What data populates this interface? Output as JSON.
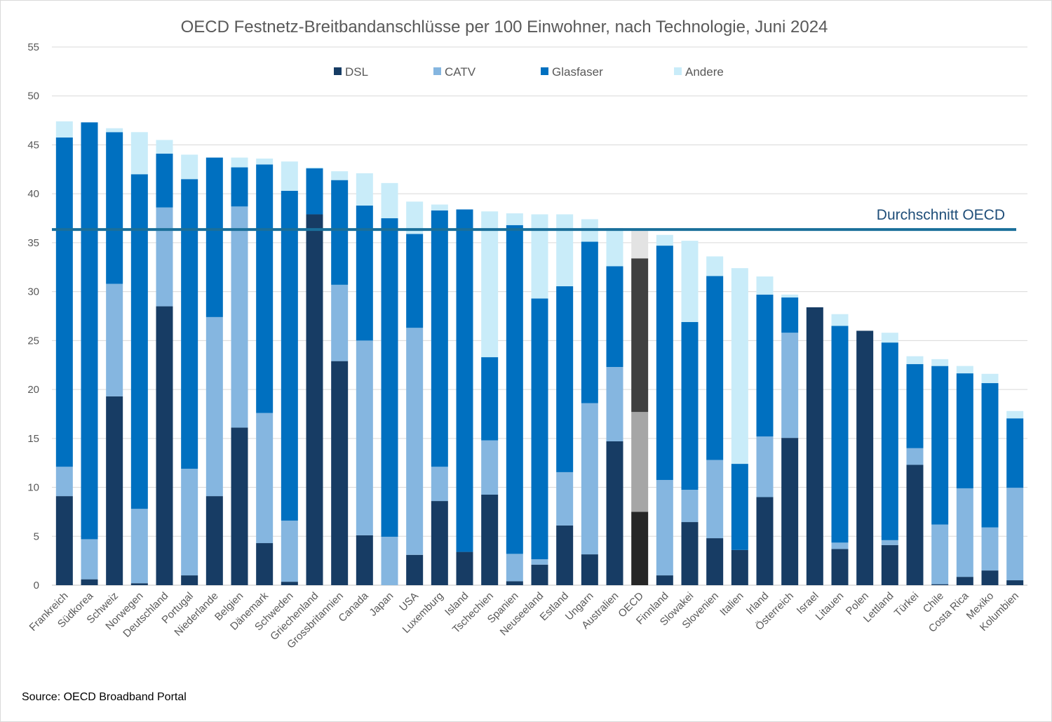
{
  "chart_data": {
    "type": "bar",
    "stacked": true,
    "title": "OECD Festnetz-Breitbandanschlüsse per 100 Einwohner, nach Technologie, Juni 2024",
    "xlabel": "",
    "ylabel": "",
    "ylim": [
      0,
      55
    ],
    "yticks": [
      0,
      5,
      10,
      15,
      20,
      25,
      30,
      35,
      40,
      45,
      50,
      55
    ],
    "grid": true,
    "legend_position": "top",
    "categories": [
      "Frankreich",
      "Südkorea",
      "Schweiz",
      "Norwegen",
      "Deutschland",
      "Portugal",
      "Niederlande",
      "Belgien",
      "Dänemark",
      "Schweden",
      "Griechenland",
      "Grossbritannien",
      "Canada",
      "Japan",
      "USA",
      "Luxemburg",
      "Island",
      "Tschechien",
      "Spanien",
      "Neuseeland",
      "Estland",
      "Ungarn",
      "Australien",
      "OECD",
      "Finnland",
      "Slowakei",
      "Slovenien",
      "Italien",
      "Irland",
      "Österreich",
      "Israel",
      "Litauen",
      "Polen",
      "Lettland",
      "Türkei",
      "Chile",
      "Costa Rica",
      "Mexiko",
      "Kolumbien"
    ],
    "series": [
      {
        "name": "DSL",
        "color": "#173c64",
        "highlight_color": "#262626",
        "values": [
          9.1,
          0.6,
          19.3,
          0.2,
          28.5,
          1.0,
          9.1,
          16.1,
          4.3,
          0.35,
          37.9,
          22.9,
          5.1,
          0,
          3.1,
          8.6,
          3.4,
          9.25,
          0.4,
          2.1,
          6.1,
          3.15,
          14.7,
          7.5,
          1.0,
          6.45,
          4.8,
          3.6,
          9.0,
          15.05,
          28.4,
          3.7,
          26.0,
          4.1,
          12.3,
          0.1,
          0.85,
          1.5,
          0.5
        ]
      },
      {
        "name": "CATV",
        "color": "#85b6e0",
        "highlight_color": "#a6a6a6",
        "values": [
          3.0,
          4.1,
          11.5,
          7.6,
          10.1,
          10.9,
          18.3,
          22.6,
          13.3,
          6.25,
          0,
          7.8,
          19.9,
          4.95,
          23.2,
          3.5,
          0,
          5.55,
          2.8,
          0.55,
          5.45,
          15.45,
          7.6,
          10.2,
          9.75,
          3.3,
          8.0,
          0,
          6.2,
          10.75,
          0,
          0.65,
          0,
          0.5,
          1.7,
          6.1,
          9.05,
          4.4,
          9.45
        ]
      },
      {
        "name": "Glasfaser",
        "color": "#0070c0",
        "highlight_color": "#404040",
        "values": [
          33.65,
          42.6,
          15.5,
          34.2,
          5.5,
          29.6,
          16.3,
          4.0,
          25.4,
          33.7,
          4.7,
          10.7,
          13.8,
          32.55,
          9.6,
          26.2,
          35.0,
          8.5,
          33.6,
          26.65,
          19.0,
          16.5,
          10.3,
          15.7,
          23.95,
          17.15,
          18.8,
          8.8,
          14.5,
          3.6,
          0,
          22.15,
          0,
          20.2,
          8.6,
          16.2,
          11.75,
          14.75,
          7.1
        ]
      },
      {
        "name": "Andere",
        "color": "#c9ecf9",
        "highlight_color": "#e3e3e3",
        "values": [
          1.65,
          0,
          0.4,
          4.3,
          1.4,
          2.5,
          0,
          1.0,
          0.6,
          3.0,
          0.1,
          0.9,
          3.3,
          3.6,
          3.3,
          0.6,
          0,
          14.9,
          1.2,
          8.6,
          7.35,
          2.3,
          3.9,
          2.8,
          1.1,
          8.3,
          2.0,
          20.0,
          1.85,
          0.3,
          0,
          1.2,
          0,
          1.0,
          0.8,
          0.7,
          0.75,
          0.95,
          0.75
        ]
      }
    ],
    "highlight_category": "OECD",
    "reference_line": {
      "label": "Durchschnitt OECD",
      "value": 36.35,
      "color": "#1a6f9a"
    }
  },
  "source": "Source: OECD Broadband Portal"
}
